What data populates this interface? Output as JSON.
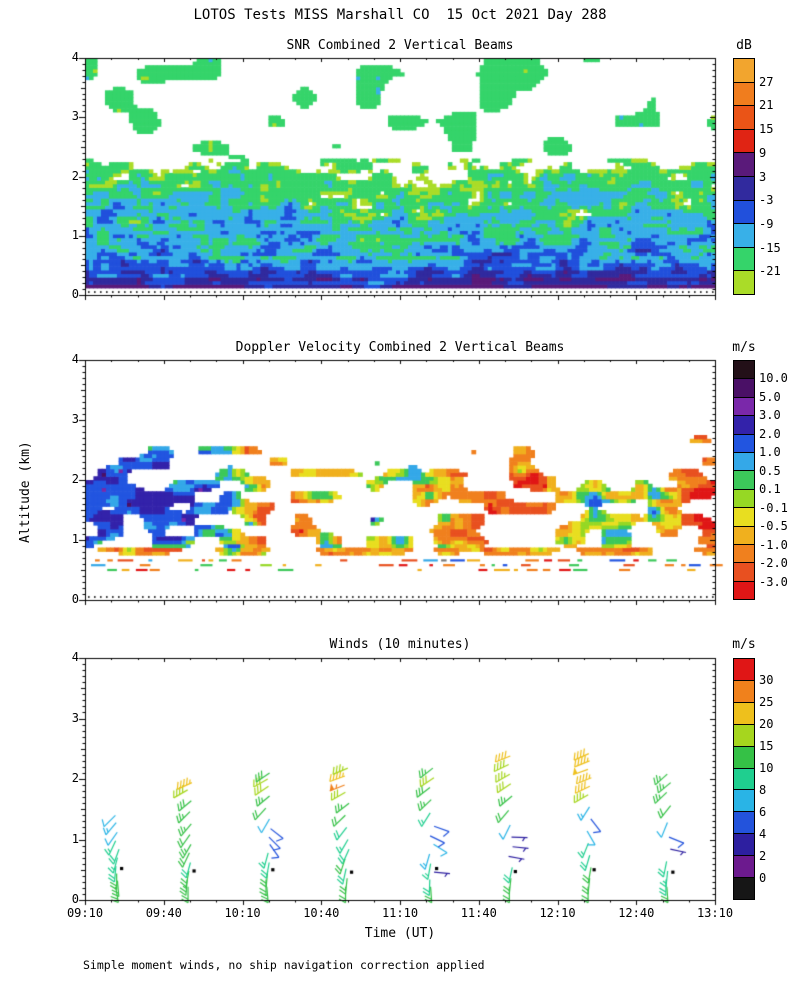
{
  "page_title": "LOTOS Tests MISS Marshall CO  15 Oct 2021 Day 288",
  "footer_note": "Simple moment winds, no ship navigation correction applied",
  "axes": {
    "xlabel": "Time (UT)",
    "ylabel": "Altitude (km)",
    "x_tick_labels": [
      "09:10",
      "09:40",
      "10:10",
      "10:40",
      "11:10",
      "11:40",
      "12:10",
      "12:40",
      "13:10"
    ],
    "y_tick_labels": [
      "0",
      "1",
      "2",
      "3",
      "4"
    ],
    "x_range_hours": [
      9.1667,
      13.1667
    ],
    "y_range_km": [
      0,
      4
    ]
  },
  "chart_data": [
    {
      "type": "filled_contour",
      "title": "SNR Combined 2 Vertical Beams",
      "unit": "dB",
      "x_range": [
        "09:10",
        "13:10"
      ],
      "y_range_km": [
        0,
        4
      ],
      "colorbar": {
        "unit": "dB",
        "labels": [
          "27",
          "21",
          "15",
          "9",
          "3",
          "-3",
          "-9",
          "-15",
          "-21"
        ],
        "thresholds": [
          27,
          21,
          15,
          9,
          3,
          -3,
          -9,
          -15,
          -21
        ],
        "colors_top_to_bottom": [
          "#f2a52e",
          "#f07d1e",
          "#ea5417",
          "#e02414",
          "#5a1a7a",
          "#312a9e",
          "#2150dc",
          "#38b0e8",
          "#35d46a",
          "#aadc28"
        ]
      },
      "field_model": {
        "seed": 11,
        "profile_db_anchors": [
          [
            0.15,
            2
          ],
          [
            0.3,
            -1
          ],
          [
            0.45,
            -6
          ],
          [
            0.6,
            -9
          ],
          [
            0.85,
            -12
          ],
          [
            1.15,
            -14.5
          ],
          [
            1.55,
            -16.5
          ],
          [
            1.95,
            -18.5
          ],
          [
            2.25,
            -22.5
          ],
          [
            2.6,
            -27
          ],
          [
            4.0,
            -31
          ]
        ],
        "noise_amp_db": 13,
        "strong_band_km": [
          0.16,
          0.6
        ],
        "speckle_layer_km": [
          0.6,
          2.3
        ],
        "cloud_layer": {
          "z_km": [
            2.35,
            4.0
          ],
          "db": -18
        },
        "zero_km_dotted_line": true
      }
    },
    {
      "type": "filled_contour",
      "title": "Doppler Velocity Combined 2 Vertical Beams",
      "unit": "m/s",
      "x_range": [
        "09:10",
        "13:10"
      ],
      "y_range_km": [
        0,
        4
      ],
      "colorbar": {
        "unit": "m/s",
        "labels": [
          "10.0",
          "5.0",
          "3.0",
          "2.0",
          "1.0",
          "0.5",
          "0.1",
          "-0.1",
          "-0.5",
          "-1.0",
          "-2.0",
          "-3.0"
        ],
        "thresholds": [
          10,
          5,
          3,
          2,
          1,
          0.5,
          0.1,
          -0.1,
          -0.5,
          -1,
          -2,
          -3
        ],
        "colors_top_to_bottom": [
          "#231018",
          "#4a1066",
          "#7a28aa",
          "#3322aa",
          "#2255e0",
          "#34a8e8",
          "#3cc85a",
          "#96d824",
          "#e8de20",
          "#f0b01e",
          "#f0801e",
          "#e85020",
          "#e01616"
        ]
      },
      "field_model": {
        "seed": 23,
        "layer_km": [
          0.72,
          2.62
        ],
        "streak_rows_km": [
          0.5,
          0.58,
          0.66
        ],
        "time_bias_anchors": [
          [
            9.17,
            1.3
          ],
          [
            9.7,
            1.1
          ],
          [
            10.1,
            0.2
          ],
          [
            10.35,
            -1.3
          ],
          [
            10.6,
            -0.2
          ],
          [
            11.0,
            -0.1
          ],
          [
            11.45,
            -0.6
          ],
          [
            11.75,
            -1.5
          ],
          [
            12.1,
            -1.0
          ],
          [
            12.4,
            0.5
          ],
          [
            12.75,
            0.2
          ],
          [
            13.0,
            -1.4
          ],
          [
            13.17,
            -2.4
          ]
        ],
        "pockets": [
          {
            "t": [
              10.25,
              10.65
            ],
            "z": [
              0.9,
              1.7
            ],
            "dv": -1.0
          },
          {
            "t": [
              11.5,
              12.1
            ],
            "z": [
              1.0,
              2.1
            ],
            "dv": -0.9
          },
          {
            "t": [
              12.95,
              13.17
            ],
            "z": [
              1.2,
              1.9
            ],
            "dv": -1.6
          },
          {
            "t": [
              9.17,
              10.1
            ],
            "z": [
              1.0,
              2.5
            ],
            "dv": 0.6
          }
        ],
        "zero_km_dotted_line": true
      }
    },
    {
      "type": "wind_barbs",
      "title": "Winds (10 minutes)",
      "unit": "m/s",
      "x_range": [
        "09:10",
        "13:10"
      ],
      "y_range_km": [
        0,
        4
      ],
      "colorbar": {
        "unit": "m/s",
        "labels": [
          "30",
          "25",
          "20",
          "15",
          "10",
          "8",
          "6",
          "4",
          "2",
          "0"
        ],
        "thresholds": [
          30,
          25,
          20,
          15,
          10,
          8,
          6,
          4,
          2,
          0
        ],
        "colors_top_to_bottom": [
          "#e01616",
          "#f0811c",
          "#eec01c",
          "#a6d61e",
          "#35c146",
          "#1fcf8f",
          "#29b4e6",
          "#2353dc",
          "#2d1fa0",
          "#6c1a8e",
          "#161616"
        ]
      },
      "profiles": [
        {
          "time_hours": 9.37,
          "marker_alt_km": 0.52,
          "barbs": [
            [
              0.22,
              10,
              170
            ],
            [
              0.32,
              11,
              175
            ],
            [
              0.44,
              10,
              180
            ],
            [
              0.56,
              9,
              185
            ],
            [
              0.7,
              8,
              195
            ],
            [
              0.84,
              9,
              200
            ],
            [
              0.98,
              8,
              205
            ],
            [
              1.12,
              6,
              215
            ],
            [
              1.28,
              7,
              220
            ],
            [
              1.4,
              6,
              225
            ]
          ]
        },
        {
          "time_hours": 9.83,
          "marker_alt_km": 0.48,
          "barbs": [
            [
              0.22,
              11,
              180
            ],
            [
              0.34,
              12,
              185
            ],
            [
              0.48,
              10,
              190
            ],
            [
              0.62,
              9,
              195
            ],
            [
              0.78,
              10,
              205
            ],
            [
              0.92,
              12,
              210
            ],
            [
              1.08,
              11,
              215
            ],
            [
              1.26,
              12,
              220
            ],
            [
              1.46,
              13,
              225
            ],
            [
              1.64,
              14,
              230
            ],
            [
              1.82,
              19,
              240
            ],
            [
              1.94,
              22,
              245
            ]
          ]
        },
        {
          "time_hours": 10.33,
          "marker_alt_km": 0.5,
          "barbs": [
            [
              0.22,
              12,
              175
            ],
            [
              0.34,
              11,
              180
            ],
            [
              0.48,
              10,
              185
            ],
            [
              0.62,
              9,
              190
            ],
            [
              0.78,
              8,
              195
            ],
            [
              0.92,
              5,
              145
            ],
            [
              1.04,
              4,
              135
            ],
            [
              1.18,
              5,
              128
            ],
            [
              1.34,
              6,
              210
            ],
            [
              1.52,
              10,
              222
            ],
            [
              1.72,
              13,
              230
            ],
            [
              1.88,
              15,
              236
            ],
            [
              2.0,
              16,
              240
            ],
            [
              2.1,
              14,
              236
            ]
          ]
        },
        {
          "time_hours": 10.83,
          "marker_alt_km": 0.46,
          "barbs": [
            [
              0.22,
              11,
              180
            ],
            [
              0.36,
              10,
              186
            ],
            [
              0.52,
              9,
              192
            ],
            [
              0.68,
              10,
              198
            ],
            [
              0.84,
              9,
              204
            ],
            [
              1.0,
              8,
              210
            ],
            [
              1.2,
              9,
              218
            ],
            [
              1.4,
              10,
              226
            ],
            [
              1.6,
              12,
              232
            ],
            [
              1.78,
              16,
              240
            ],
            [
              1.9,
              27,
              248
            ],
            [
              2.05,
              22,
              250
            ],
            [
              2.18,
              18,
              247
            ]
          ]
        },
        {
          "time_hours": 11.37,
          "marker_alt_km": 0.52,
          "barbs": [
            [
              0.22,
              10,
              176
            ],
            [
              0.34,
              9,
              182
            ],
            [
              0.46,
              2,
              95
            ],
            [
              0.6,
              8,
              190
            ],
            [
              0.76,
              7,
              196
            ],
            [
              0.92,
              6,
              122
            ],
            [
              1.06,
              5,
              116
            ],
            [
              1.22,
              4,
              110
            ],
            [
              1.44,
              8,
              212
            ],
            [
              1.66,
              12,
              226
            ],
            [
              1.86,
              14,
              232
            ],
            [
              2.02,
              15,
              236
            ],
            [
              2.18,
              13,
              232
            ]
          ]
        },
        {
          "time_hours": 11.87,
          "marker_alt_km": 0.47,
          "barbs": [
            [
              0.22,
              11,
              180
            ],
            [
              0.36,
              10,
              186
            ],
            [
              0.54,
              9,
              192
            ],
            [
              0.72,
              3,
              100
            ],
            [
              0.88,
              3,
              96
            ],
            [
              1.04,
              2,
              92
            ],
            [
              1.24,
              6,
              206
            ],
            [
              1.48,
              10,
              220
            ],
            [
              1.72,
              13,
              230
            ],
            [
              1.92,
              15,
              236
            ],
            [
              2.08,
              17,
              240
            ],
            [
              2.24,
              19,
              244
            ],
            [
              2.38,
              20,
              248
            ]
          ]
        },
        {
          "time_hours": 12.37,
          "marker_alt_km": 0.5,
          "barbs": [
            [
              0.22,
              10,
              180
            ],
            [
              0.36,
              11,
              186
            ],
            [
              0.54,
              10,
              190
            ],
            [
              0.74,
              9,
              196
            ],
            [
              0.94,
              8,
              202
            ],
            [
              1.14,
              6,
              150
            ],
            [
              1.34,
              5,
              142
            ],
            [
              1.54,
              7,
              212
            ],
            [
              1.74,
              18,
              240
            ],
            [
              1.88,
              21,
              244
            ],
            [
              2.02,
              23,
              248
            ],
            [
              2.16,
              24,
              250
            ],
            [
              2.3,
              22,
              248
            ],
            [
              2.42,
              20,
              246
            ]
          ]
        },
        {
          "time_hours": 12.87,
          "marker_alt_km": 0.46,
          "barbs": [
            [
              0.22,
              10,
              176
            ],
            [
              0.34,
              9,
              181
            ],
            [
              0.48,
              8,
              186
            ],
            [
              0.64,
              9,
              191
            ],
            [
              0.84,
              3,
              102
            ],
            [
              1.04,
              4,
              112
            ],
            [
              1.28,
              6,
              202
            ],
            [
              1.56,
              10,
              218
            ],
            [
              1.78,
              12,
              226
            ],
            [
              1.94,
              13,
              230
            ],
            [
              2.08,
              12,
              228
            ]
          ]
        }
      ]
    }
  ]
}
